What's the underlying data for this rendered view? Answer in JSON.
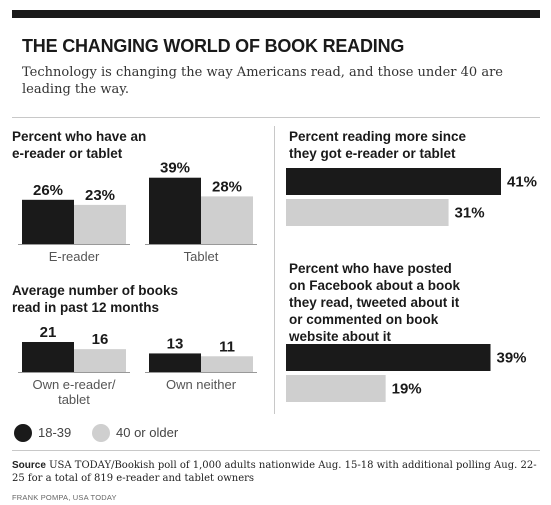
{
  "header": {
    "title": "THE CHANGING WORLD OF BOOK READING",
    "subtitle": "Technology is changing the way Americans read, and those under 40 are leading the way."
  },
  "legend": {
    "items": [
      {
        "label": "18-39",
        "color": "#1a1a1a"
      },
      {
        "label": "40 or older",
        "color": "#cfcfcf"
      }
    ]
  },
  "colors": {
    "dark": "#1a1a1a",
    "light": "#cfcfcf"
  },
  "chart_data": [
    {
      "id": "ereader",
      "type": "bar",
      "title": "Percent who have an e-reader or tablet",
      "title_lines": [
        "Percent who have an",
        "e-reader or tablet"
      ],
      "categories": [
        "E-reader",
        "Tablet"
      ],
      "series": [
        {
          "name": "18-39",
          "values": [
            26,
            39
          ]
        },
        {
          "name": "40 or older",
          "values": [
            23,
            28
          ]
        }
      ],
      "value_labels": [
        [
          "26%",
          "39%"
        ],
        [
          "23%",
          "28%"
        ]
      ],
      "ylim": [
        0,
        40
      ]
    },
    {
      "id": "books",
      "type": "bar",
      "title": "Average number of books read in past 12 months",
      "title_lines": [
        "Average number of books",
        "read in past 12 months"
      ],
      "categories": [
        "Own e-reader/ tablet",
        "Own neither"
      ],
      "category_lines": [
        [
          "Own e-reader/",
          "tablet"
        ],
        [
          "Own neither"
        ]
      ],
      "series": [
        {
          "name": "18-39",
          "values": [
            21,
            13
          ]
        },
        {
          "name": "40 or older",
          "values": [
            16,
            11
          ]
        }
      ],
      "value_labels": [
        [
          "21",
          "13"
        ],
        [
          "16",
          "11"
        ]
      ],
      "ylim": [
        0,
        21
      ]
    },
    {
      "id": "reading-more",
      "type": "bar",
      "orientation": "horizontal",
      "title": "Percent reading more since they got e-reader or tablet",
      "title_lines": [
        "Percent reading more since",
        "they got e-reader or tablet"
      ],
      "series": [
        {
          "name": "18-39",
          "values": [
            41
          ]
        },
        {
          "name": "40 or older",
          "values": [
            31
          ]
        }
      ],
      "value_labels": [
        [
          "41%"
        ],
        [
          "31%"
        ]
      ],
      "xlim": [
        0,
        41
      ]
    },
    {
      "id": "social",
      "type": "bar",
      "orientation": "horizontal",
      "title": "Percent who have posted on Facebook about a book they read, tweeted about it or commented on book website about it",
      "title_lines": [
        "Percent who have posted",
        "on Facebook about a book",
        "they read, tweeted about it",
        "or commented on book",
        "website about it"
      ],
      "series": [
        {
          "name": "18-39",
          "values": [
            39
          ]
        },
        {
          "name": "40 or older",
          "values": [
            19
          ]
        }
      ],
      "value_labels": [
        [
          "39%"
        ],
        [
          "19%"
        ]
      ],
      "xlim": [
        0,
        41
      ]
    }
  ],
  "footer": {
    "source_label": "Source",
    "source_text": "USA TODAY/Bookish poll of 1,000 adults nationwide Aug. 15-18 with additional polling Aug. 22-25 for a total of 819 e-reader and tablet owners",
    "credit": "FRANK POMPA, USA TODAY"
  }
}
